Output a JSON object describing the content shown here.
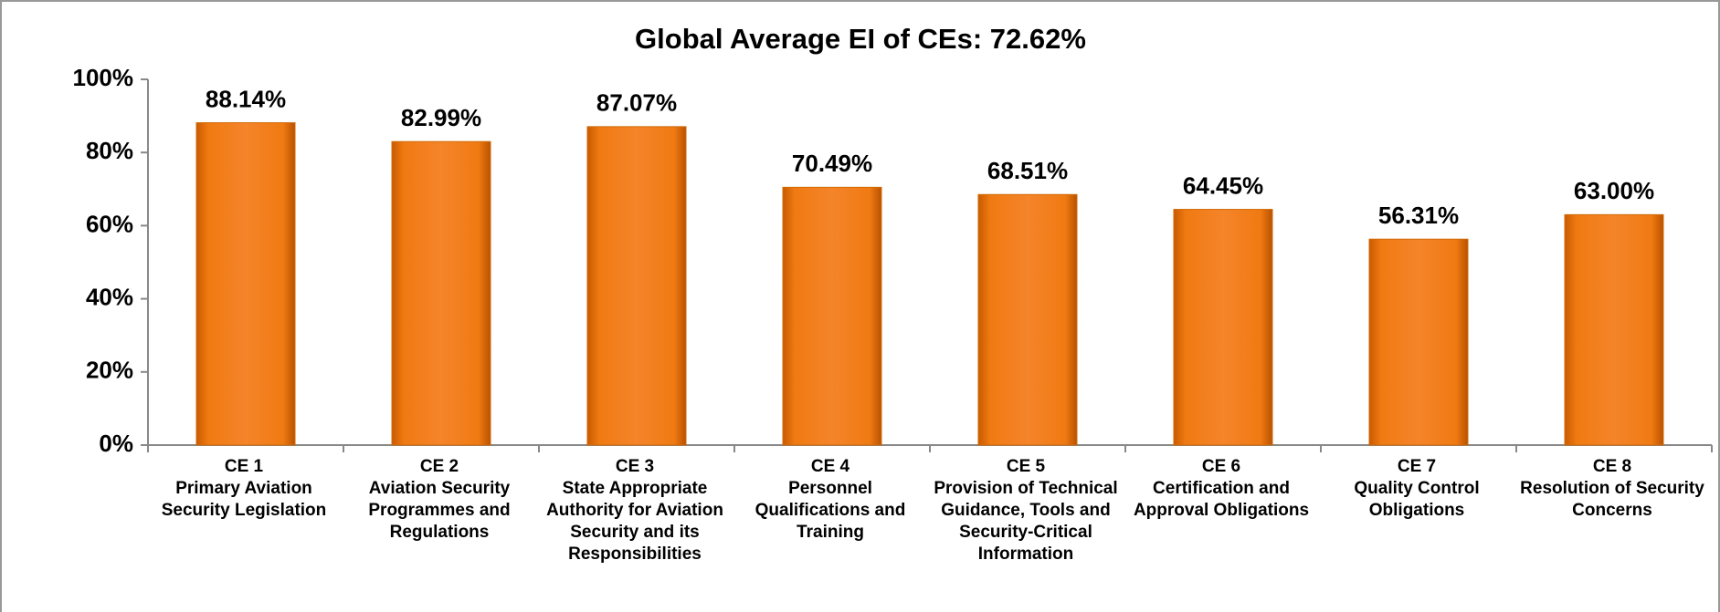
{
  "chart_data": {
    "type": "bar",
    "title": "Global Average EI of CEs: 72.62%",
    "categories": [
      "CE 1\nPrimary Aviation Security Legislation",
      "CE 2\nAviation Security Programmes and Regulations",
      "CE 3\nState Appropriate Authority for Aviation Security and its Responsibilities",
      "CE 4\nPersonnel Qualifications and Training",
      "CE 5\nProvision of Technical Guidance, Tools and Security-Critical Information",
      "CE 6\nCertification and Approval Obligations",
      "CE 7\nQuality Control Obligations",
      "CE 8\nResolution of Security Concerns"
    ],
    "values": [
      88.14,
      82.99,
      87.07,
      70.49,
      68.51,
      64.45,
      56.31,
      63.0
    ],
    "value_labels": [
      "88.14%",
      "82.99%",
      "87.07%",
      "70.49%",
      "68.51%",
      "64.45%",
      "56.31%",
      "63.00%"
    ],
    "color": "#f07a12",
    "ylim": [
      0,
      100
    ],
    "yticks": [
      {
        "value": 0,
        "label": "0%"
      },
      {
        "value": 20,
        "label": "20%"
      },
      {
        "value": 40,
        "label": "40%"
      },
      {
        "value": 60,
        "label": "60%"
      },
      {
        "value": 80,
        "label": "80%"
      },
      {
        "value": 100,
        "label": "100%"
      }
    ],
    "grid": false
  }
}
